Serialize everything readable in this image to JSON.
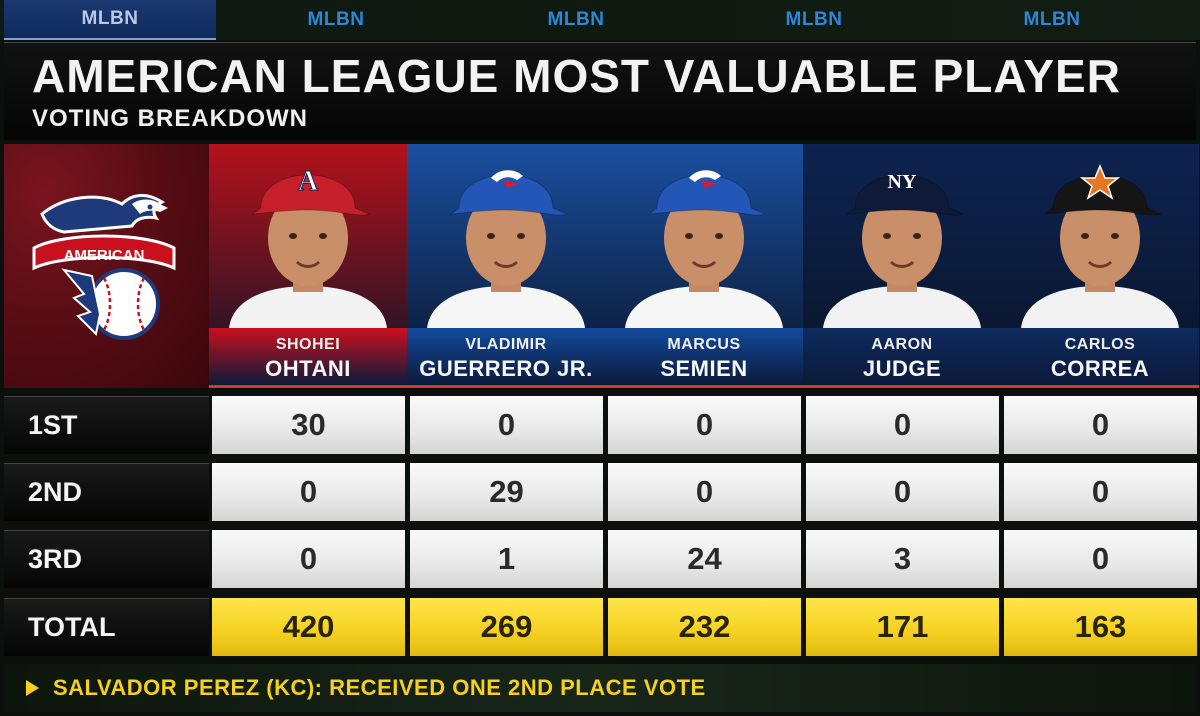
{
  "network_tabs": [
    "MLBN",
    "MLBN",
    "MLBN",
    "MLBN",
    "MLBN"
  ],
  "title": "AMERICAN LEAGUE MOST VALUABLE PLAYER",
  "subtitle": "VOTING BREAKDOWN",
  "league_logo": {
    "text": "AMERICAN",
    "icon": "american-league-eagle-logo"
  },
  "players": [
    {
      "first": "SHOHEI",
      "last": "OHTANI",
      "team_color": "#b5121b",
      "plate_color": "#c8101e",
      "cap_color": "#c8202a",
      "cap_logo": "A",
      "jersey": "#f3f3f3"
    },
    {
      "first": "VLADIMIR",
      "last": "GUERRERO JR.",
      "team_color": "#1a4fa0",
      "plate_color": "#134a9c",
      "cap_color": "#2456b8",
      "cap_logo": "bird",
      "jersey": "#f6f6f6"
    },
    {
      "first": "MARCUS",
      "last": "SEMIEN",
      "team_color": "#1a4fa0",
      "plate_color": "#134a9c",
      "cap_color": "#2456b8",
      "cap_logo": "bird",
      "jersey": "#f6f6f6"
    },
    {
      "first": "AARON",
      "last": "JUDGE",
      "team_color": "#0d2350",
      "plate_color": "#0e2a5e",
      "cap_color": "#0e1a38",
      "cap_logo": "NY",
      "jersey": "#f2f2f2"
    },
    {
      "first": "CARLOS",
      "last": "CORREA",
      "team_color": "#0d2350",
      "plate_color": "#0e2a5e",
      "cap_color": "#151515",
      "cap_logo": "star",
      "jersey": "#f2f2f2"
    }
  ],
  "rows": [
    {
      "label": "1ST",
      "values": [
        "30",
        "0",
        "0",
        "0",
        "0"
      ]
    },
    {
      "label": "2ND",
      "values": [
        "0",
        "29",
        "0",
        "0",
        "0"
      ]
    },
    {
      "label": "3RD",
      "values": [
        "0",
        "1",
        "24",
        "3",
        "0"
      ]
    }
  ],
  "total": {
    "label": "TOTAL",
    "values": [
      "420",
      "269",
      "232",
      "171",
      "163"
    ]
  },
  "footer": "SALVADOR PEREZ (KC): RECEIVED ONE 2ND PLACE VOTE",
  "colors": {
    "total_yellow": "#f5d020",
    "footer_text": "#f5d020"
  }
}
